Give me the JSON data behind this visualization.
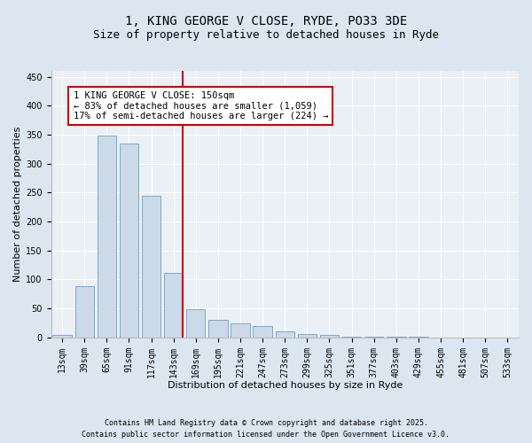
{
  "title1": "1, KING GEORGE V CLOSE, RYDE, PO33 3DE",
  "title2": "Size of property relative to detached houses in Ryde",
  "xlabel": "Distribution of detached houses by size in Ryde",
  "ylabel": "Number of detached properties",
  "categories": [
    "13sqm",
    "39sqm",
    "65sqm",
    "91sqm",
    "117sqm",
    "143sqm",
    "169sqm",
    "195sqm",
    "221sqm",
    "247sqm",
    "273sqm",
    "299sqm",
    "325sqm",
    "351sqm",
    "377sqm",
    "403sqm",
    "429sqm",
    "455sqm",
    "481sqm",
    "507sqm",
    "533sqm"
  ],
  "values": [
    5,
    88,
    348,
    335,
    245,
    112,
    48,
    31,
    24,
    20,
    10,
    6,
    4,
    2,
    2,
    1,
    1,
    0,
    0,
    0,
    0
  ],
  "bar_color": "#ccd9e8",
  "bar_edge_color": "#7aaac8",
  "vline_color": "#cc0000",
  "annotation_text": "1 KING GEORGE V CLOSE: 150sqm\n← 83% of detached houses are smaller (1,059)\n17% of semi-detached houses are larger (224) →",
  "annotation_box_color": "#ffffff",
  "annotation_box_edge": "#cc0000",
  "ylim": [
    0,
    460
  ],
  "yticks": [
    0,
    50,
    100,
    150,
    200,
    250,
    300,
    350,
    400,
    450
  ],
  "bg_color": "#dce6f0",
  "plot_bg_color": "#eaf0f6",
  "footer1": "Contains HM Land Registry data © Crown copyright and database right 2025.",
  "footer2": "Contains public sector information licensed under the Open Government Licence v3.0.",
  "title_fontsize": 10,
  "subtitle_fontsize": 9,
  "axis_label_fontsize": 8,
  "tick_fontsize": 7,
  "annotation_fontsize": 7.5,
  "footer_fontsize": 6
}
